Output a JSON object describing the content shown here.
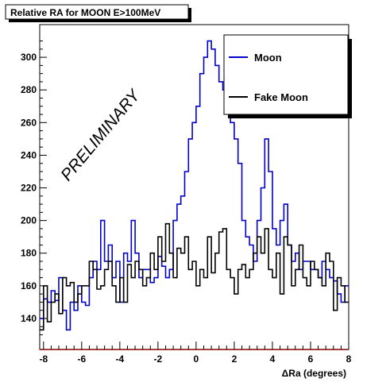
{
  "chart_data": {
    "type": "line",
    "title": "Relative RA for MOON E>100MeV",
    "xlabel": "ΔRa (degrees)",
    "ylabel": "",
    "xlim": [
      -8.2,
      8.0
    ],
    "ylim": [
      121,
      320
    ],
    "x_ticks": [
      -8,
      -6,
      -4,
      -2,
      0,
      2,
      4,
      6,
      8
    ],
    "y_ticks": [
      140,
      160,
      180,
      200,
      220,
      240,
      260,
      280,
      300
    ],
    "annotation": "PRELIMINARY",
    "legend_position": "top-right",
    "grid": false,
    "bin_start": -8.2,
    "bin_width": 0.2,
    "series": [
      {
        "name": "Moon",
        "color": "#0000cc",
        "values": [
          140,
          152,
          150,
          157,
          151,
          165,
          145,
          133,
          150,
          145,
          160,
          150,
          148,
          165,
          175,
          170,
          200,
          175,
          185,
          165,
          175,
          150,
          180,
          175,
          200,
          180,
          165,
          170,
          170,
          162,
          165,
          178,
          172,
          165,
          170,
          200,
          210,
          215,
          230,
          250,
          260,
          270,
          290,
          300,
          310,
          305,
          295,
          285,
          280,
          270,
          260,
          250,
          235,
          200,
          190,
          185,
          175,
          200,
          220,
          250,
          230,
          195,
          185,
          200,
          210,
          185,
          175,
          180,
          170,
          175,
          175,
          170,
          170,
          165,
          175,
          170,
          165,
          163,
          155,
          150,
          160,
          155,
          150,
          145,
          135
        ]
      },
      {
        "name": "Fake Moon",
        "color": "#000000",
        "values": [
          133,
          160,
          138,
          150,
          155,
          143,
          165,
          160,
          162,
          150,
          155,
          160,
          160,
          175,
          170,
          158,
          160,
          170,
          175,
          160,
          150,
          165,
          150,
          173,
          165,
          175,
          170,
          160,
          165,
          180,
          170,
          190,
          175,
          198,
          180,
          165,
          183,
          180,
          190,
          170,
          175,
          160,
          170,
          165,
          190,
          168,
          180,
          193,
          195,
          170,
          165,
          155,
          170,
          173,
          165,
          170,
          180,
          190,
          180,
          195,
          170,
          165,
          180,
          155,
          190,
          185,
          160,
          170,
          185,
          165,
          160,
          175,
          170,
          165,
          160,
          180,
          175,
          145,
          165,
          160,
          150,
          155,
          140,
          150,
          155,
          185
        ]
      }
    ]
  }
}
